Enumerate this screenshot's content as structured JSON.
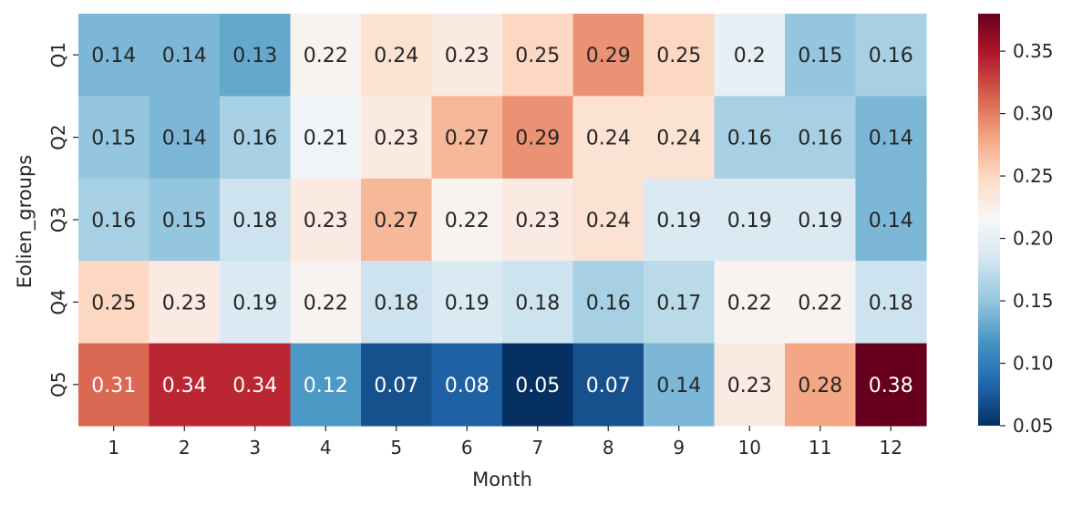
{
  "chart_data": {
    "type": "heatmap",
    "title": "",
    "xlabel": "Month",
    "ylabel": "Eolien_groups",
    "x_categories": [
      "1",
      "2",
      "3",
      "4",
      "5",
      "6",
      "7",
      "8",
      "9",
      "10",
      "11",
      "12"
    ],
    "y_categories": [
      "Q1",
      "Q2",
      "Q3",
      "Q4",
      "Q5"
    ],
    "values": [
      [
        0.14,
        0.14,
        0.13,
        0.22,
        0.24,
        0.23,
        0.25,
        0.29,
        0.25,
        0.2,
        0.15,
        0.16
      ],
      [
        0.15,
        0.14,
        0.16,
        0.21,
        0.23,
        0.27,
        0.29,
        0.24,
        0.24,
        0.16,
        0.16,
        0.14
      ],
      [
        0.16,
        0.15,
        0.18,
        0.23,
        0.27,
        0.22,
        0.23,
        0.24,
        0.19,
        0.19,
        0.19,
        0.14
      ],
      [
        0.25,
        0.23,
        0.19,
        0.22,
        0.18,
        0.19,
        0.18,
        0.16,
        0.17,
        0.22,
        0.22,
        0.18
      ],
      [
        0.31,
        0.34,
        0.34,
        0.12,
        0.07,
        0.08,
        0.05,
        0.07,
        0.14,
        0.23,
        0.28,
        0.38
      ]
    ],
    "value_labels": [
      [
        "0.14",
        "0.14",
        "0.13",
        "0.22",
        "0.24",
        "0.23",
        "0.25",
        "0.29",
        "0.25",
        "0.2",
        "0.15",
        "0.16"
      ],
      [
        "0.15",
        "0.14",
        "0.16",
        "0.21",
        "0.23",
        "0.27",
        "0.29",
        "0.24",
        "0.24",
        "0.16",
        "0.16",
        "0.14"
      ],
      [
        "0.16",
        "0.15",
        "0.18",
        "0.23",
        "0.27",
        "0.22",
        "0.23",
        "0.24",
        "0.19",
        "0.19",
        "0.19",
        "0.14"
      ],
      [
        "0.25",
        "0.23",
        "0.19",
        "0.22",
        "0.18",
        "0.19",
        "0.18",
        "0.16",
        "0.17",
        "0.22",
        "0.22",
        "0.18"
      ],
      [
        "0.31",
        "0.34",
        "0.34",
        "0.12",
        "0.07",
        "0.08",
        "0.05",
        "0.07",
        "0.14",
        "0.23",
        "0.28",
        "0.38"
      ]
    ],
    "colorbar": {
      "colormap": "RdBu_r",
      "range": [
        0.05,
        0.38
      ],
      "ticks": [
        0.05,
        0.1,
        0.15,
        0.2,
        0.25,
        0.3,
        0.35
      ],
      "tick_labels": [
        "0.05",
        "0.10",
        "0.15",
        "0.20",
        "0.25",
        "0.30",
        "0.35"
      ]
    },
    "grid": false,
    "legend": "none"
  }
}
